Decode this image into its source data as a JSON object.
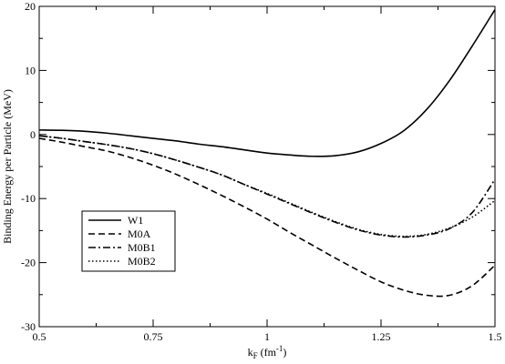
{
  "chart_data": {
    "type": "line",
    "title": "",
    "xlabel": "k",
    "xlabel_sub": "F",
    "xlabel_unit_prefix": " (fm",
    "xlabel_unit_sup": "-1",
    "xlabel_unit_suffix": ")",
    "ylabel": "Binding Energy per Particle (MeV)",
    "xlim": [
      0.5,
      1.5
    ],
    "ylim": [
      -30,
      20
    ],
    "xticks": [
      0.5,
      0.75,
      1.0,
      1.25,
      1.5
    ],
    "xtick_labels": [
      "0.5",
      "0.75",
      "1",
      "1.25",
      "1.5"
    ],
    "yticks": [
      -30,
      -20,
      -10,
      0,
      10,
      20
    ],
    "ytick_labels": [
      "-30",
      "-20",
      "-10",
      "0",
      "10",
      "20"
    ],
    "grid": false,
    "legend_position": "lower-left",
    "series": [
      {
        "name": "W1",
        "style": "solid",
        "points": [
          [
            0.5,
            0.7
          ],
          [
            0.55,
            0.65
          ],
          [
            0.6,
            0.5
          ],
          [
            0.65,
            0.2
          ],
          [
            0.7,
            -0.2
          ],
          [
            0.75,
            -0.6
          ],
          [
            0.8,
            -1.0
          ],
          [
            0.85,
            -1.5
          ],
          [
            0.9,
            -1.9
          ],
          [
            0.95,
            -2.4
          ],
          [
            1.0,
            -2.9
          ],
          [
            1.05,
            -3.2
          ],
          [
            1.1,
            -3.4
          ],
          [
            1.15,
            -3.3
          ],
          [
            1.2,
            -2.7
          ],
          [
            1.25,
            -1.4
          ],
          [
            1.3,
            0.6
          ],
          [
            1.35,
            3.9
          ],
          [
            1.4,
            8.4
          ],
          [
            1.45,
            13.8
          ],
          [
            1.5,
            19.5
          ]
        ]
      },
      {
        "name": "M0A",
        "style": "dashed",
        "points": [
          [
            0.5,
            -0.6
          ],
          [
            0.55,
            -1.2
          ],
          [
            0.6,
            -1.9
          ],
          [
            0.65,
            -2.6
          ],
          [
            0.7,
            -3.6
          ],
          [
            0.75,
            -4.8
          ],
          [
            0.8,
            -6.2
          ],
          [
            0.85,
            -7.8
          ],
          [
            0.9,
            -9.5
          ],
          [
            0.95,
            -11.3
          ],
          [
            1.0,
            -13.2
          ],
          [
            1.05,
            -15.3
          ],
          [
            1.1,
            -17.3
          ],
          [
            1.15,
            -19.3
          ],
          [
            1.2,
            -21.2
          ],
          [
            1.25,
            -23.0
          ],
          [
            1.3,
            -24.3
          ],
          [
            1.35,
            -25.1
          ],
          [
            1.4,
            -25.1
          ],
          [
            1.45,
            -23.6
          ],
          [
            1.5,
            -20.4
          ]
        ]
      },
      {
        "name": "M0B1",
        "style": "dashdot",
        "points": [
          [
            0.5,
            -0.2
          ],
          [
            0.55,
            -0.6
          ],
          [
            0.6,
            -1.1
          ],
          [
            0.65,
            -1.6
          ],
          [
            0.7,
            -2.2
          ],
          [
            0.75,
            -3.0
          ],
          [
            0.8,
            -4.0
          ],
          [
            0.85,
            -5.1
          ],
          [
            0.9,
            -6.3
          ],
          [
            0.95,
            -7.8
          ],
          [
            1.0,
            -9.3
          ],
          [
            1.05,
            -10.8
          ],
          [
            1.1,
            -12.3
          ],
          [
            1.15,
            -13.7
          ],
          [
            1.2,
            -14.9
          ],
          [
            1.25,
            -15.7
          ],
          [
            1.3,
            -16.0
          ],
          [
            1.35,
            -15.7
          ],
          [
            1.4,
            -14.7
          ],
          [
            1.45,
            -12.2
          ],
          [
            1.5,
            -7.0
          ]
        ]
      },
      {
        "name": "M0B2",
        "style": "dotted",
        "points": [
          [
            0.5,
            -0.2
          ],
          [
            0.55,
            -0.6
          ],
          [
            0.6,
            -1.1
          ],
          [
            0.65,
            -1.6
          ],
          [
            0.7,
            -2.2
          ],
          [
            0.75,
            -3.0
          ],
          [
            0.8,
            -4.0
          ],
          [
            0.85,
            -5.1
          ],
          [
            0.9,
            -6.3
          ],
          [
            0.95,
            -7.8
          ],
          [
            1.0,
            -9.2
          ],
          [
            1.05,
            -10.7
          ],
          [
            1.1,
            -12.2
          ],
          [
            1.15,
            -13.6
          ],
          [
            1.2,
            -14.8
          ],
          [
            1.25,
            -15.6
          ],
          [
            1.3,
            -15.9
          ],
          [
            1.35,
            -15.6
          ],
          [
            1.4,
            -14.6
          ],
          [
            1.45,
            -12.9
          ],
          [
            1.5,
            -10.3
          ]
        ]
      }
    ]
  }
}
